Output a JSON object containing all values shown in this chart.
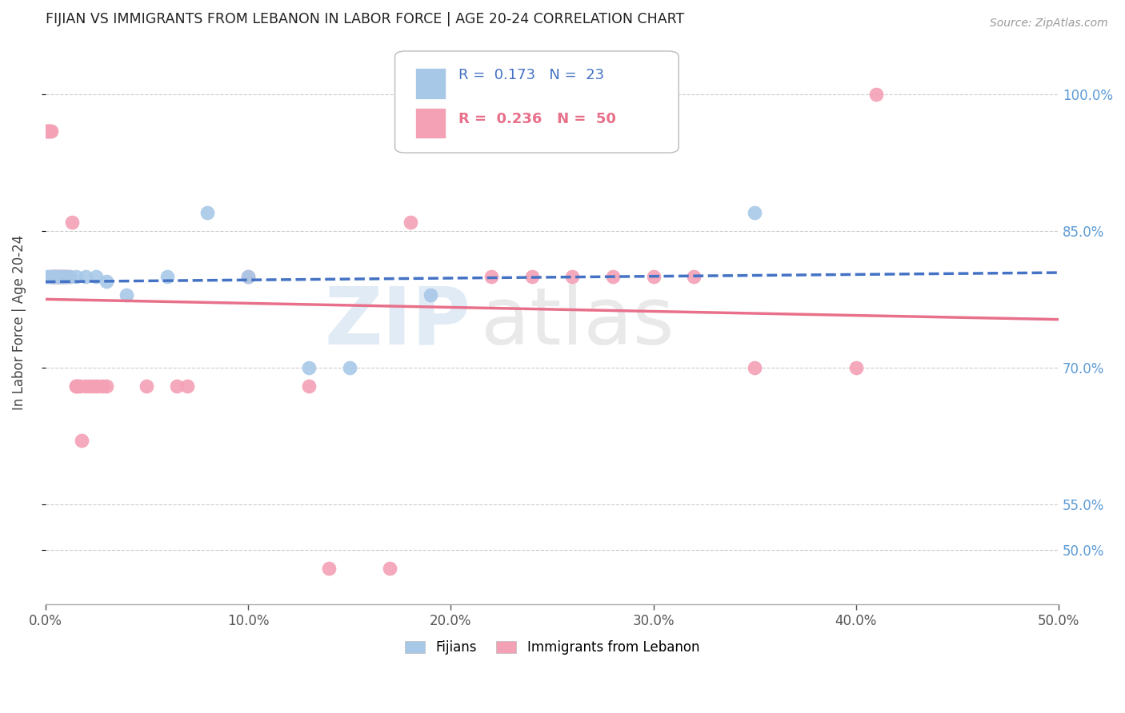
{
  "title": "FIJIAN VS IMMIGRANTS FROM LEBANON IN LABOR FORCE | AGE 20-24 CORRELATION CHART",
  "source": "Source: ZipAtlas.com",
  "ylabel": "In Labor Force | Age 20-24",
  "xlim": [
    0.0,
    0.5
  ],
  "ylim": [
    0.44,
    1.06
  ],
  "ytick_labels": [
    "50.0%",
    "55.0%",
    "70.0%",
    "85.0%",
    "100.0%"
  ],
  "ytick_values": [
    0.5,
    0.55,
    0.7,
    0.85,
    1.0
  ],
  "xtick_labels": [
    "0.0%",
    "10.0%",
    "20.0%",
    "30.0%",
    "40.0%",
    "50.0%"
  ],
  "xtick_values": [
    0.0,
    0.1,
    0.2,
    0.3,
    0.4,
    0.5
  ],
  "fijian_R": "0.173",
  "fijian_N": "23",
  "lebanon_R": "0.236",
  "lebanon_N": "50",
  "fijian_color": "#a8c8e8",
  "lebanon_color": "#f4a0b5",
  "fijian_line_color": "#4472c4",
  "lebanon_line_color": "#e8708a",
  "grid_color": "#cccccc",
  "title_color": "#222222",
  "axis_label_color": "#444444",
  "right_tick_color": "#5b9bd5",
  "fijian_x": [
    0.001,
    0.002,
    0.003,
    0.004,
    0.005,
    0.006,
    0.007,
    0.008,
    0.009,
    0.01,
    0.012,
    0.015,
    0.02,
    0.025,
    0.03,
    0.04,
    0.06,
    0.08,
    0.1,
    0.13,
    0.15,
    0.19,
    0.35
  ],
  "fijian_y": [
    0.8,
    0.8,
    0.8,
    0.8,
    0.8,
    0.8,
    0.8,
    0.8,
    0.8,
    0.8,
    0.8,
    0.8,
    0.8,
    0.8,
    0.795,
    0.78,
    0.8,
    0.87,
    0.8,
    0.7,
    0.7,
    0.78,
    0.87
  ],
  "lebanon_x": [
    0.001,
    0.001,
    0.001,
    0.002,
    0.002,
    0.003,
    0.003,
    0.004,
    0.004,
    0.005,
    0.005,
    0.006,
    0.006,
    0.007,
    0.007,
    0.008,
    0.008,
    0.009,
    0.01,
    0.01,
    0.012,
    0.013,
    0.015,
    0.015,
    0.016,
    0.017,
    0.018,
    0.02,
    0.022,
    0.024,
    0.026,
    0.028,
    0.03,
    0.05,
    0.065,
    0.07,
    0.1,
    0.13,
    0.14,
    0.17,
    0.18,
    0.22,
    0.24,
    0.26,
    0.28,
    0.3,
    0.32,
    0.35,
    0.4,
    0.41
  ],
  "lebanon_y": [
    0.96,
    0.96,
    0.96,
    0.96,
    0.96,
    0.96,
    0.8,
    0.8,
    0.8,
    0.8,
    0.8,
    0.8,
    0.8,
    0.8,
    0.8,
    0.8,
    0.8,
    0.8,
    0.8,
    0.8,
    0.8,
    0.86,
    0.68,
    0.68,
    0.68,
    0.68,
    0.62,
    0.68,
    0.68,
    0.68,
    0.68,
    0.68,
    0.68,
    0.68,
    0.68,
    0.68,
    0.8,
    0.68,
    0.48,
    0.48,
    0.86,
    0.8,
    0.8,
    0.8,
    0.8,
    0.8,
    0.8,
    0.7,
    0.7,
    1.0
  ]
}
